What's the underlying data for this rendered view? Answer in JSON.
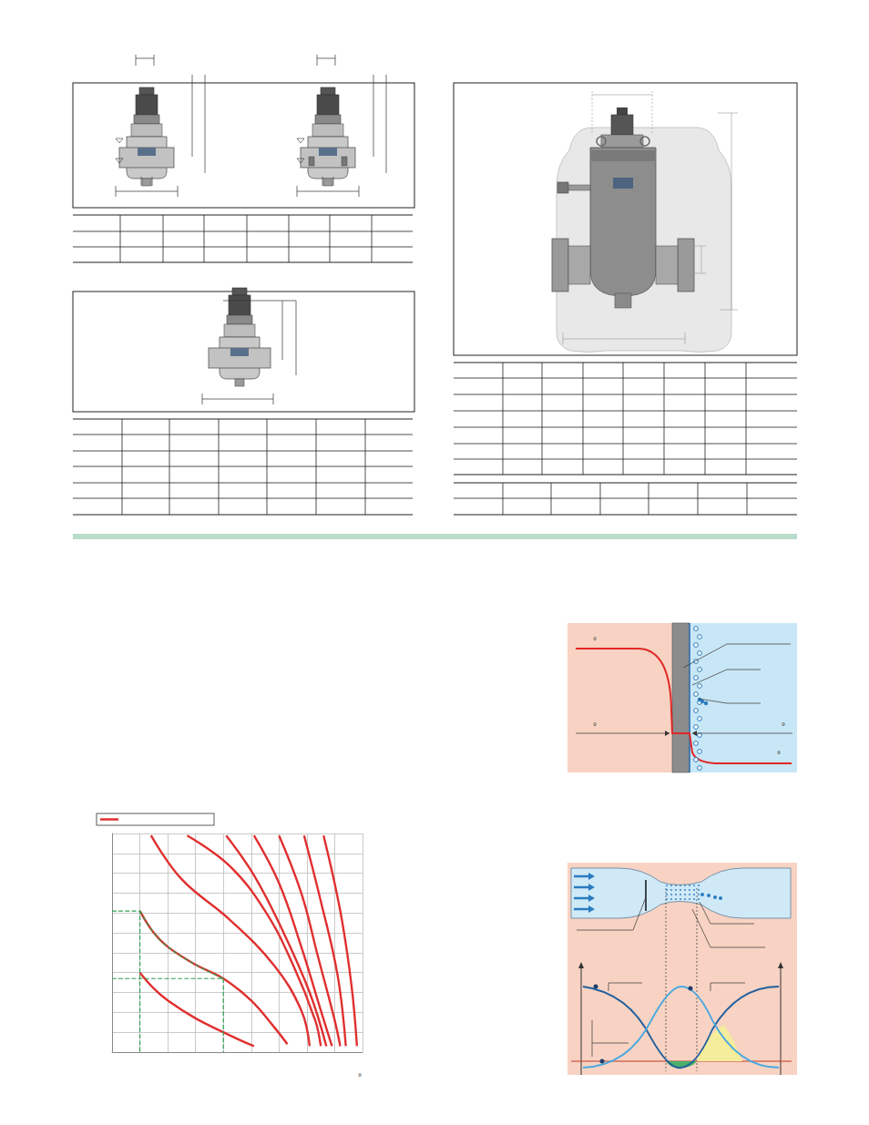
{
  "chart_data": {
    "type": "line",
    "tick_labels": false,
    "grid": true,
    "xlim": [
      0,
      9
    ],
    "xticks": [
      0,
      1,
      2,
      3,
      4,
      5,
      6,
      7,
      8,
      9
    ],
    "ylim": [
      0,
      11
    ],
    "yticks": [
      0,
      1,
      2,
      3,
      4,
      5,
      6,
      7,
      8,
      9,
      10,
      11
    ],
    "series": [
      {
        "color": "#e03030",
        "x": [
          1.0,
          1.5,
          2.0,
          3.0,
          4.0,
          4.6,
          5.1
        ],
        "values": [
          4.0,
          3.2,
          2.6,
          1.7,
          1.0,
          0.6,
          0.3
        ]
      },
      {
        "color": "#e03030",
        "x": [
          1.0,
          1.5,
          2.0,
          3.0,
          4.0,
          5.0,
          5.8,
          6.3
        ],
        "values": [
          7.1,
          6.0,
          5.3,
          4.4,
          3.7,
          2.6,
          1.3,
          0.4
        ]
      },
      {
        "color": "#e03030",
        "x": [
          1.4,
          2.5,
          4.2,
          5.8,
          6.8,
          7.1
        ],
        "values": [
          10.9,
          8.7,
          6.7,
          4.4,
          2.1,
          0.3
        ]
      },
      {
        "color": "#e03030",
        "x": [
          2.7,
          4.2,
          5.5,
          6.5,
          7.3,
          7.5
        ],
        "values": [
          10.9,
          9.4,
          7.1,
          4.4,
          1.6,
          0.3
        ]
      },
      {
        "color": "#e03030",
        "x": [
          4.1,
          5.1,
          6.1,
          7.1,
          7.7
        ],
        "values": [
          10.9,
          8.9,
          6.2,
          3.0,
          0.3
        ]
      },
      {
        "color": "#e03030",
        "x": [
          5.1,
          6.0,
          6.8,
          7.5,
          7.9
        ],
        "values": [
          10.9,
          8.5,
          5.3,
          2.1,
          0.3
        ]
      },
      {
        "color": "#e03030",
        "x": [
          6.0,
          6.8,
          7.4,
          8.0,
          8.2
        ],
        "values": [
          10.9,
          8.0,
          4.8,
          1.6,
          0.3
        ]
      },
      {
        "color": "#e03030",
        "x": [
          6.9,
          7.5,
          8.1,
          8.4
        ],
        "values": [
          10.9,
          7.6,
          3.9,
          0.3
        ]
      },
      {
        "color": "#e03030",
        "x": [
          7.6,
          8.2,
          8.6,
          8.8
        ],
        "values": [
          10.9,
          7.1,
          3.4,
          0.3
        ]
      },
      {
        "color": "#2e9e4f",
        "line_style": "dashed",
        "x": [
          0,
          1.0,
          1.0
        ],
        "values": [
          7.1,
          7.1,
          0
        ]
      },
      {
        "color": "#2e9e4f",
        "line_style": "dashed",
        "x": [
          0,
          4.0,
          4.0
        ],
        "values": [
          3.7,
          3.7,
          0
        ]
      },
      {
        "color": "#2e9e4f",
        "line_style": "dashed",
        "x": [
          1.0,
          1.5,
          2.0,
          3.0,
          4.0
        ],
        "values": [
          7.1,
          6.0,
          5.3,
          4.4,
          3.7
        ]
      }
    ]
  },
  "page": {
    "symbols": [
      "°",
      "°",
      "°",
      "°",
      "°"
    ]
  }
}
